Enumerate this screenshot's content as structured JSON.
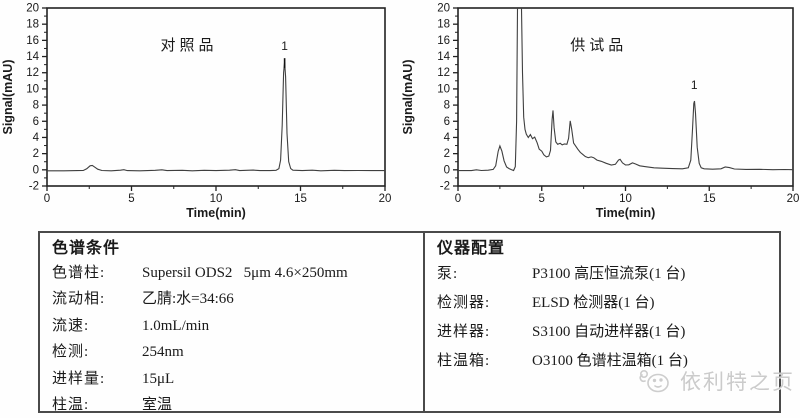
{
  "chart_data": [
    {
      "type": "line",
      "title": "对照品",
      "xlabel": "Time(min)",
      "ylabel": "Signal(mAU)",
      "xlim": [
        0,
        20
      ],
      "ylim": [
        -2,
        20
      ],
      "xtick_step": 5,
      "xminor_step": 2.5,
      "ytick_step": 2,
      "yminor_step": 1,
      "grid": false,
      "legend": null,
      "line_color": "#3f3f3f",
      "frame_color": "#222222",
      "peaks": [
        {
          "label": "1",
          "time": 14.06,
          "height": 13.3
        }
      ],
      "apex_marker": {
        "time": 14.06,
        "from": 12.6,
        "to": 13.8
      },
      "points": [
        [
          0,
          -0.12
        ],
        [
          1.0,
          -0.12
        ],
        [
          1.8,
          -0.1
        ],
        [
          2.15,
          -0.08
        ],
        [
          2.35,
          0.12
        ],
        [
          2.55,
          0.5
        ],
        [
          2.68,
          0.55
        ],
        [
          2.85,
          0.3
        ],
        [
          3.0,
          0.08
        ],
        [
          3.25,
          -0.08
        ],
        [
          3.8,
          -0.12
        ],
        [
          4.35,
          -0.05
        ],
        [
          4.55,
          0.02
        ],
        [
          4.75,
          -0.1
        ],
        [
          5.5,
          -0.12
        ],
        [
          6.4,
          -0.06
        ],
        [
          6.8,
          0.0
        ],
        [
          7.1,
          -0.1
        ],
        [
          8.0,
          -0.06
        ],
        [
          8.6,
          -0.12
        ],
        [
          9.3,
          -0.06
        ],
        [
          10.0,
          -0.1
        ],
        [
          10.8,
          -0.05
        ],
        [
          11.15,
          0.02
        ],
        [
          11.4,
          -0.1
        ],
        [
          12.2,
          -0.04
        ],
        [
          12.6,
          -0.1
        ],
        [
          13.2,
          -0.1
        ],
        [
          13.55,
          -0.06
        ],
        [
          13.72,
          0.15
        ],
        [
          13.82,
          1.2
        ],
        [
          13.92,
          5.5
        ],
        [
          14.0,
          12.0
        ],
        [
          14.06,
          13.3
        ],
        [
          14.12,
          11.5
        ],
        [
          14.2,
          4.5
        ],
        [
          14.3,
          1.0
        ],
        [
          14.42,
          0.15
        ],
        [
          14.55,
          -0.05
        ],
        [
          15.1,
          -0.1
        ],
        [
          15.7,
          -0.05
        ],
        [
          16.2,
          -0.12
        ],
        [
          17.0,
          -0.06
        ],
        [
          17.6,
          -0.1
        ],
        [
          18.4,
          -0.08
        ],
        [
          19.2,
          -0.1
        ],
        [
          20,
          -0.1
        ]
      ]
    },
    {
      "type": "line",
      "title": "供试品",
      "xlabel": "Time(min)",
      "ylabel": "Signal(mAU)",
      "xlim": [
        0,
        20
      ],
      "ylim": [
        -2,
        20
      ],
      "xtick_step": 5,
      "xminor_step": 2.5,
      "ytick_step": 2,
      "yminor_step": 1,
      "grid": false,
      "legend": null,
      "line_color": "#3f3f3f",
      "frame_color": "#222222",
      "peaks": [
        {
          "label": "1",
          "time": 14.1,
          "height": 8.5
        }
      ],
      "apex_marker": null,
      "points": [
        [
          0,
          -0.1
        ],
        [
          0.8,
          -0.1
        ],
        [
          1.1,
          0.0
        ],
        [
          1.4,
          -0.08
        ],
        [
          1.8,
          -0.05
        ],
        [
          2.1,
          0.05
        ],
        [
          2.25,
          0.5
        ],
        [
          2.4,
          2.3
        ],
        [
          2.5,
          2.95
        ],
        [
          2.62,
          2.3
        ],
        [
          2.75,
          1.1
        ],
        [
          2.9,
          0.35
        ],
        [
          3.05,
          0.15
        ],
        [
          3.2,
          0.02
        ],
        [
          3.32,
          -0.08
        ],
        [
          3.42,
          0.4
        ],
        [
          3.5,
          6.0
        ],
        [
          3.56,
          21.5
        ],
        [
          3.78,
          21.5
        ],
        [
          3.85,
          12.0
        ],
        [
          3.92,
          6.5
        ],
        [
          4.0,
          5.0
        ],
        [
          4.08,
          4.4
        ],
        [
          4.2,
          4.0
        ],
        [
          4.32,
          4.35
        ],
        [
          4.45,
          3.85
        ],
        [
          4.58,
          4.05
        ],
        [
          4.72,
          3.35
        ],
        [
          4.85,
          2.55
        ],
        [
          5.0,
          2.3
        ],
        [
          5.12,
          1.85
        ],
        [
          5.28,
          1.6
        ],
        [
          5.42,
          1.7
        ],
        [
          5.52,
          2.4
        ],
        [
          5.62,
          6.2
        ],
        [
          5.67,
          7.35
        ],
        [
          5.74,
          5.2
        ],
        [
          5.84,
          3.45
        ],
        [
          5.95,
          3.15
        ],
        [
          6.1,
          3.28
        ],
        [
          6.22,
          3.08
        ],
        [
          6.35,
          3.2
        ],
        [
          6.5,
          3.15
        ],
        [
          6.6,
          3.9
        ],
        [
          6.7,
          6.05
        ],
        [
          6.78,
          5.1
        ],
        [
          6.9,
          3.3
        ],
        [
          7.02,
          2.95
        ],
        [
          7.15,
          2.55
        ],
        [
          7.3,
          2.15
        ],
        [
          7.45,
          1.9
        ],
        [
          7.6,
          1.65
        ],
        [
          7.78,
          1.5
        ],
        [
          7.95,
          1.6
        ],
        [
          8.1,
          1.5
        ],
        [
          8.3,
          1.2
        ],
        [
          8.55,
          1.05
        ],
        [
          8.85,
          0.8
        ],
        [
          9.15,
          0.6
        ],
        [
          9.4,
          0.68
        ],
        [
          9.58,
          1.2
        ],
        [
          9.68,
          1.3
        ],
        [
          9.82,
          0.85
        ],
        [
          10.0,
          0.6
        ],
        [
          10.2,
          0.62
        ],
        [
          10.42,
          0.85
        ],
        [
          10.6,
          0.72
        ],
        [
          10.85,
          0.5
        ],
        [
          11.2,
          0.38
        ],
        [
          11.7,
          0.25
        ],
        [
          12.2,
          0.2
        ],
        [
          12.8,
          0.15
        ],
        [
          13.4,
          0.12
        ],
        [
          13.75,
          0.25
        ],
        [
          13.9,
          1.2
        ],
        [
          14.0,
          5.0
        ],
        [
          14.08,
          8.2
        ],
        [
          14.12,
          8.5
        ],
        [
          14.18,
          7.0
        ],
        [
          14.28,
          2.8
        ],
        [
          14.4,
          0.8
        ],
        [
          14.52,
          0.25
        ],
        [
          14.7,
          0.12
        ],
        [
          15.2,
          0.08
        ],
        [
          15.7,
          0.12
        ],
        [
          15.95,
          0.35
        ],
        [
          16.2,
          0.28
        ],
        [
          16.5,
          0.1
        ],
        [
          17.2,
          0.05
        ],
        [
          18.0,
          0.06
        ],
        [
          18.8,
          0.02
        ],
        [
          19.5,
          0.04
        ],
        [
          20,
          0.02
        ]
      ]
    }
  ],
  "table": {
    "left": {
      "header": "色谱条件",
      "rows": [
        {
          "label": "色谱柱:",
          "value": "Supersil ODS2   5μm 4.6×250mm"
        },
        {
          "label": "流动相:",
          "value": "乙腈:水=34:66"
        },
        {
          "label": "流速:",
          "value": "1.0mL/min"
        },
        {
          "label": "检测:",
          "value": "254nm"
        },
        {
          "label": "进样量:",
          "value": "15μL"
        },
        {
          "label": "柱温:",
          "value": "室温"
        }
      ]
    },
    "right": {
      "header": "仪器配置",
      "rows": [
        {
          "label": "泵:",
          "value": "P3100 高压恒流泵(1 台)"
        },
        {
          "label": "检测器:",
          "value": "ELSD 检测器(1 台)"
        },
        {
          "label": "进样器:",
          "value": "S3100 自动进样器(1 台)"
        },
        {
          "label": "柱温箱:",
          "value": "O3100 色谱柱温箱(1 台)"
        }
      ]
    },
    "watermark": "依利特之页"
  }
}
